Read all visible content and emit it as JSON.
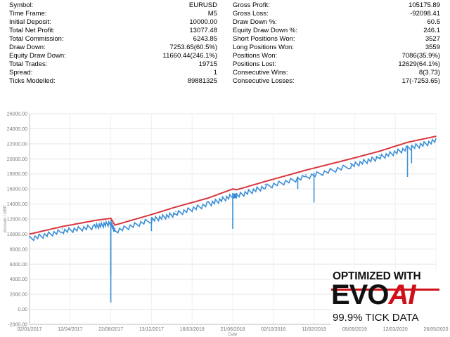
{
  "stats": {
    "left": [
      {
        "label": "Symbol:",
        "value": "EURUSD"
      },
      {
        "label": "Time Frame:",
        "value": "M5"
      },
      {
        "label": "Initial Deposit:",
        "value": "10000.00"
      },
      {
        "label": "Total Net Profit:",
        "value": "13077.48"
      },
      {
        "label": "Total Commission:",
        "value": "6243.85"
      },
      {
        "label": "Draw Down:",
        "value": "7253.65(60.5%)"
      },
      {
        "label": "Equity Draw Down:",
        "value": "11660.44(246.1%)"
      },
      {
        "label": "Total Trades:",
        "value": "19715"
      },
      {
        "label": "Spread:",
        "value": "1"
      },
      {
        "label": "Ticks Modelled:",
        "value": "89881325"
      }
    ],
    "right": [
      {
        "label": "Gross Profit:",
        "value": "105175.89"
      },
      {
        "label": "Gross Loss:",
        "value": "-92098.41"
      },
      {
        "label": "Draw Down %:",
        "value": "60.5"
      },
      {
        "label": "Equity Draw Down %:",
        "value": "246.1"
      },
      {
        "label": "Short Positions Won:",
        "value": "3527"
      },
      {
        "label": "Long Positions Won:",
        "value": "3559"
      },
      {
        "label": "Positions Won:",
        "value": "7086(35.9%)"
      },
      {
        "label": "Positions Lost:",
        "value": "12629(64.1%)"
      },
      {
        "label": "Consecutive Wins:",
        "value": "8(3.73)"
      },
      {
        "label": "Consecutive Losses:",
        "value": "17(-7253.65)"
      }
    ]
  },
  "chart_data": {
    "type": "line",
    "ylabel": "Account / GBP",
    "xlabel": "Date",
    "ylim": [
      -2000,
      26000
    ],
    "yticks": [
      "-2000.00",
      "0.00",
      "2000.00",
      "4000.00",
      "6000.00",
      "8000.00",
      "10000.00",
      "12000.00",
      "14000.00",
      "16000.00",
      "18000.00",
      "20000.00",
      "22000.00",
      "24000.00",
      "26000.00"
    ],
    "xticks": [
      "02/01/2017",
      "12/04/2017",
      "22/08/2017",
      "13/12/2017",
      "16/03/2018",
      "21/06/2018",
      "02/10/2018",
      "11/02/2019",
      "05/09/2019",
      "12/03/2020",
      "26/05/2020"
    ],
    "grid": true,
    "series": [
      {
        "color": "#d9363e",
        "x": [
          0,
          0.08,
          0.16,
          0.2,
          0.21,
          0.3,
          0.36,
          0.44,
          0.5,
          0.51,
          0.58,
          0.68,
          0.79,
          0.86,
          0.93,
          1.0
        ],
        "values": [
          10000,
          11000,
          11800,
          12100,
          11200,
          12600,
          13600,
          14800,
          16000,
          15900,
          17000,
          18500,
          20000,
          21000,
          22200,
          23000
        ]
      },
      {
        "color": "#3b8fd6",
        "x": [
          0,
          0.08,
          0.16,
          0.2,
          0.21,
          0.3,
          0.36,
          0.44,
          0.5,
          0.51,
          0.58,
          0.68,
          0.79,
          0.86,
          0.93,
          1.0
        ],
        "values": [
          9700,
          10700,
          11300,
          11800,
          10700,
          12200,
          13000,
          14300,
          15400,
          15400,
          16600,
          17900,
          19400,
          20500,
          21700,
          22700
        ]
      }
    ],
    "equity_dips": [
      {
        "x": 0.2,
        "value": 900
      },
      {
        "x": 0.2,
        "value": 4600
      },
      {
        "x": 0.3,
        "value": 10400
      },
      {
        "x": 0.5,
        "value": 10700
      },
      {
        "x": 0.66,
        "value": 16000
      },
      {
        "x": 0.7,
        "value": 14200
      },
      {
        "x": 0.93,
        "value": 17600
      },
      {
        "x": 0.94,
        "value": 19400
      }
    ]
  },
  "badge": {
    "top": "OPTIMIZED WITH",
    "logo_a": "EVO",
    "logo_b": "AI",
    "bottom": "99.9% TICK DATA"
  }
}
